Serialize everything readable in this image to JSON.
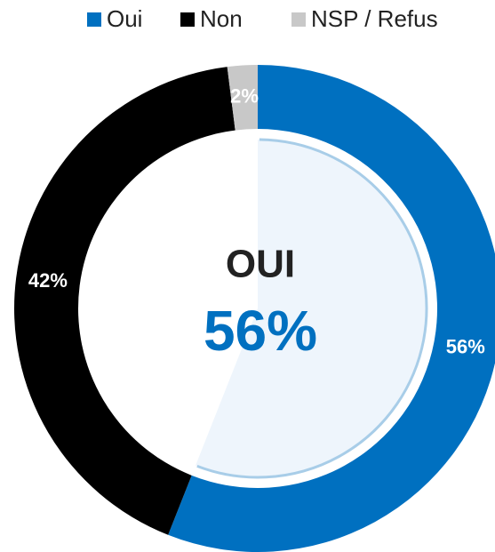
{
  "chart_data": {
    "type": "donut",
    "categories": [
      "Oui",
      "Non",
      "NSP / Refus"
    ],
    "values": [
      56,
      42,
      2
    ],
    "value_labels": [
      "56%",
      "42%",
      "2%"
    ],
    "colors": [
      "#0070c0",
      "#000000",
      "#c8c8c8"
    ],
    "center_label": "OUI",
    "legend": "top"
  }
}
